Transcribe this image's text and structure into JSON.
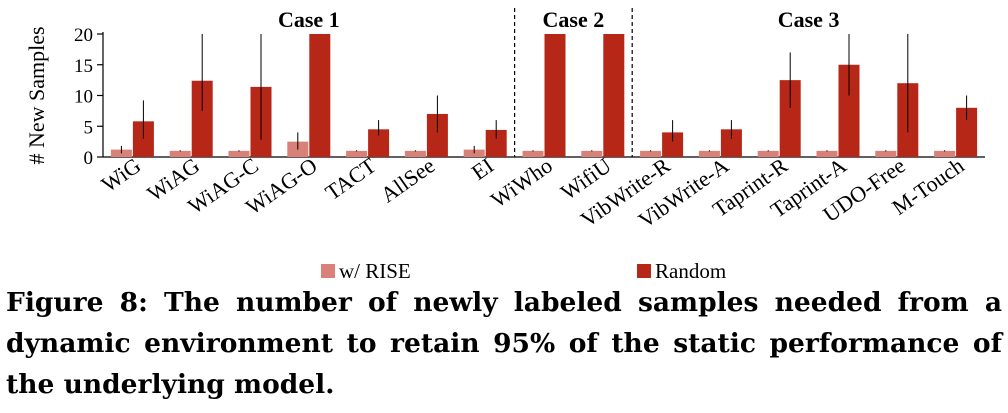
{
  "chart_data": {
    "type": "bar",
    "ylabel": "# New Samples",
    "ylim": [
      0,
      20
    ],
    "yticks": [
      "0",
      "5",
      "10",
      "15",
      "20"
    ],
    "categories": [
      "WiG",
      "WiAG",
      "WiAG-C",
      "WiAG-O",
      "TACT",
      "AllSee",
      "EI",
      "WiWho",
      "WifiU",
      "VibWrite-R",
      "VibWrite-A",
      "Taprint-R",
      "Taprint-A",
      "UDO-Free",
      "M-Touch"
    ],
    "groups": [
      {
        "label": "Case 1",
        "start": 0,
        "end": 6
      },
      {
        "label": "Case 2",
        "start": 7,
        "end": 8
      },
      {
        "label": "Case  3",
        "start": 9,
        "end": 14
      }
    ],
    "series": [
      {
        "name": "w/ RISE",
        "color": "#d98079",
        "values": [
          1.2,
          1,
          1,
          2.5,
          1,
          1,
          1.2,
          1,
          1,
          1,
          1,
          1,
          1,
          1,
          1
        ],
        "err_low": [
          0.6,
          0.9,
          0.9,
          1.2,
          0.9,
          0.9,
          0.6,
          0.9,
          0.9,
          0.9,
          0.9,
          0.9,
          0.9,
          0.9,
          0.9
        ],
        "err_high": [
          1.8,
          1.1,
          1.1,
          4,
          1.1,
          1.1,
          1.8,
          1.1,
          1.1,
          1.1,
          1.1,
          1.1,
          1.1,
          1.1,
          1.1
        ]
      },
      {
        "name": "Random",
        "color": "#b62718",
        "values": [
          5.8,
          12.4,
          11.4,
          20,
          4.5,
          7,
          4.4,
          20,
          20,
          4,
          4.5,
          12.5,
          15,
          12,
          8
        ],
        "err_low": [
          3,
          7.5,
          2.8,
          20,
          3.5,
          4,
          3,
          20,
          20,
          2.5,
          3,
          8,
          10,
          4,
          6
        ],
        "err_high": [
          9.2,
          20,
          20,
          20,
          6,
          10,
          6,
          20,
          20,
          6,
          6,
          17,
          20,
          20,
          10
        ]
      }
    ],
    "legend_position": "bottom"
  },
  "caption": {
    "text": "Figure 8: The number of newly labeled samples needed from a dynamic environment to retain 95% of the static performance of the underlying model."
  }
}
